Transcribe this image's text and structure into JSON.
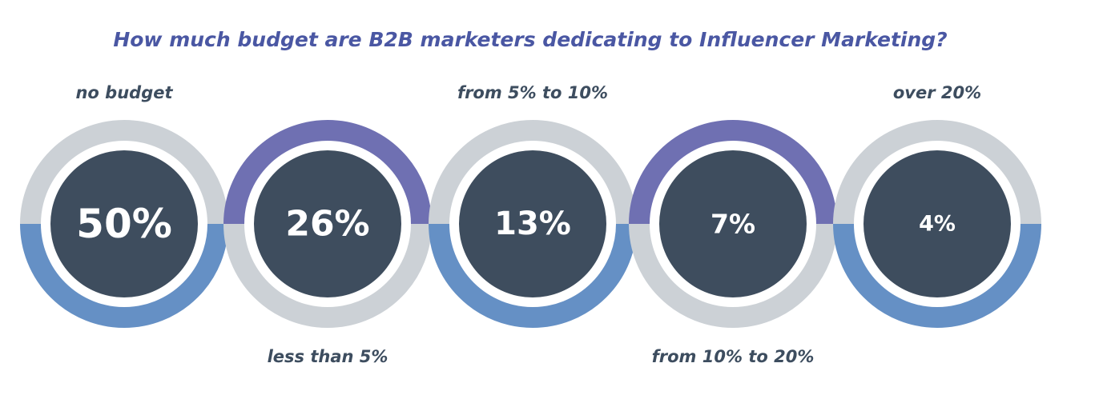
{
  "chart_data": {
    "type": "pie",
    "title": "How much budget are B2B marketers dedicating to Influencer Marketing?",
    "categories": [
      "no budget",
      "less than 5%",
      "from 5% to 10%",
      "from 10% to 20%",
      "over 20%"
    ],
    "values": [
      50,
      26,
      13,
      7,
      4
    ],
    "value_labels": [
      "50%",
      "26%",
      "13%",
      "7%",
      "4%"
    ],
    "label_placement": [
      "top",
      "bottom",
      "top",
      "bottom",
      "top"
    ],
    "unit": "%"
  },
  "colors": {
    "title": "#4a57a3",
    "label": "#3d4d5f",
    "center": "#3e4d5e",
    "ring_gray": "#ccd1d6",
    "ring_blue": "#6590c5",
    "ring_purple": "#6f70b2",
    "value_text": "#ffffff",
    "background": "#ffffff"
  }
}
